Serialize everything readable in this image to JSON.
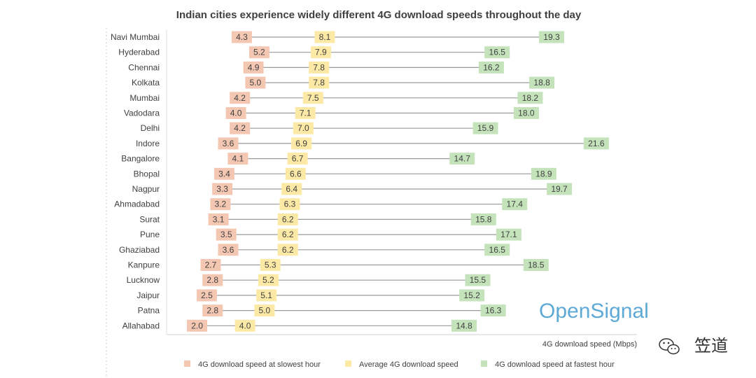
{
  "chart_data": {
    "type": "range-dot",
    "title": "Indian cities experience widely different 4G download speeds throughout the day",
    "xlabel": "4G download speed (Mbps)",
    "xlim": [
      0,
      22.5
    ],
    "categories": [
      "Navi Mumbai",
      "Hyderabad",
      "Chennai",
      "Kolkata",
      "Mumbai",
      "Vadodara",
      "Delhi",
      "Indore",
      "Bangalore",
      "Bhopal",
      "Nagpur",
      "Ahmadabad",
      "Surat",
      "Pune",
      "Ghaziabad",
      "Kanpure",
      "Lucknow",
      "Jaipur",
      "Patna",
      "Allahabad"
    ],
    "series": [
      {
        "name": "4G download speed at slowest hour",
        "color": "#f4c7b3",
        "values": [
          4.3,
          5.2,
          4.9,
          5.0,
          4.2,
          4.0,
          4.2,
          3.6,
          4.1,
          3.4,
          3.3,
          3.2,
          3.1,
          3.5,
          3.6,
          2.7,
          2.8,
          2.5,
          2.8,
          2.0
        ],
        "labels": [
          "4.3",
          "5.2",
          "4.9",
          "5.0",
          "4.2",
          "4.0",
          "4.2",
          "3.6",
          "4.1",
          "3.4",
          "3.3",
          "3.2",
          "3.1",
          "3.5",
          "3.6",
          "2.7",
          "2.8",
          "2.5",
          "2.8",
          "2.0"
        ]
      },
      {
        "name": "Average 4G download speed",
        "color": "#fde9a6",
        "values": [
          8.1,
          7.9,
          7.8,
          7.8,
          7.5,
          7.1,
          7.0,
          6.9,
          6.7,
          6.6,
          6.4,
          6.3,
          6.2,
          6.2,
          6.2,
          5.3,
          5.2,
          5.1,
          5.0,
          4.0
        ],
        "labels": [
          "8.1",
          "7.9",
          "7.8",
          "7.8",
          "7.5",
          "7.1",
          "7.0",
          "6.9",
          "6.7",
          "6.6",
          "6.4",
          "6.3",
          "6.2",
          "6.2",
          "6.2",
          "5.3",
          "5.2",
          "5.1",
          "5.0",
          "4.0"
        ]
      },
      {
        "name": "4G download speed at fastest hour",
        "color": "#c4e3bb",
        "values": [
          19.3,
          16.5,
          16.2,
          18.8,
          18.2,
          18.0,
          15.9,
          21.6,
          14.7,
          18.9,
          19.7,
          17.4,
          15.8,
          17.1,
          16.5,
          18.5,
          15.5,
          15.2,
          16.3,
          14.8
        ],
        "labels": [
          "19.3",
          "16.5",
          "16.2",
          "18.8",
          "18.2",
          "18.0",
          "15.9",
          "21.6",
          "14.7",
          "18.9",
          "19.7",
          "17.4",
          "15.8",
          "17.1",
          "16.5",
          "18.5",
          "15.5",
          "15.2",
          "16.3",
          "14.8"
        ]
      }
    ],
    "legend_position": "bottom",
    "grid": false,
    "line_color": "#9a9a9a"
  },
  "branding": {
    "logo_text": "OpenSignal",
    "logo_color": "#5ea9d6"
  },
  "watermark": {
    "text": "笠道"
  }
}
